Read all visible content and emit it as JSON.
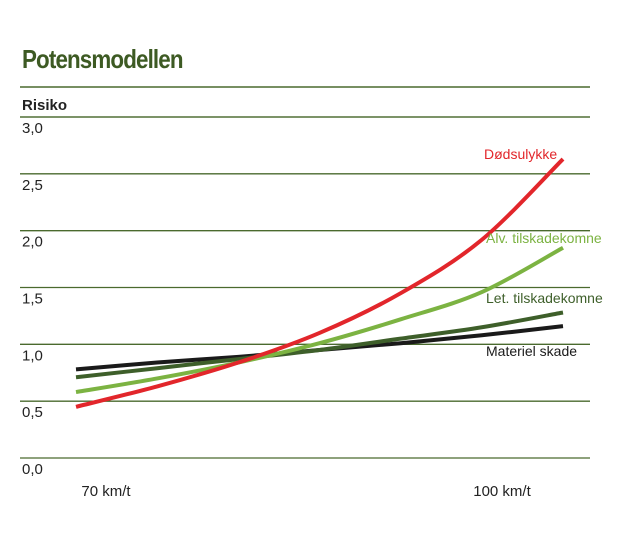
{
  "chart_data": {
    "type": "line",
    "title": "Potensmodellen",
    "ylabel": "Risiko",
    "xlabel": "",
    "ylim": [
      0,
      3
    ],
    "yticks": [
      "0,0",
      "0,5",
      "1,0",
      "1,5",
      "2,0",
      "2,5",
      "3,0"
    ],
    "x_tick_labels": [
      "70 km/t",
      "100 km/t"
    ],
    "x": [
      70,
      75,
      80,
      85,
      90,
      95,
      100
    ],
    "grid": true,
    "series": [
      {
        "name": "Dødsulykke",
        "color": "#e2262b",
        "values": [
          0.45,
          0.63,
          0.84,
          1.1,
          1.45,
          1.92,
          2.63
        ]
      },
      {
        "name": "Alv. tilskadekomne",
        "color": "#7cb342",
        "values": [
          0.58,
          0.7,
          0.84,
          1.01,
          1.22,
          1.46,
          1.85
        ]
      },
      {
        "name": "Let. tilskadekomne",
        "color": "#3e5f2a",
        "values": [
          0.71,
          0.79,
          0.87,
          0.95,
          1.05,
          1.15,
          1.28
        ]
      },
      {
        "name": "Materiel skade",
        "color": "#1a1a1a",
        "values": [
          0.78,
          0.84,
          0.89,
          0.95,
          1.01,
          1.08,
          1.16
        ]
      }
    ]
  },
  "colors": {
    "title": "#3d5a23",
    "rule": "#4a6a2e"
  }
}
